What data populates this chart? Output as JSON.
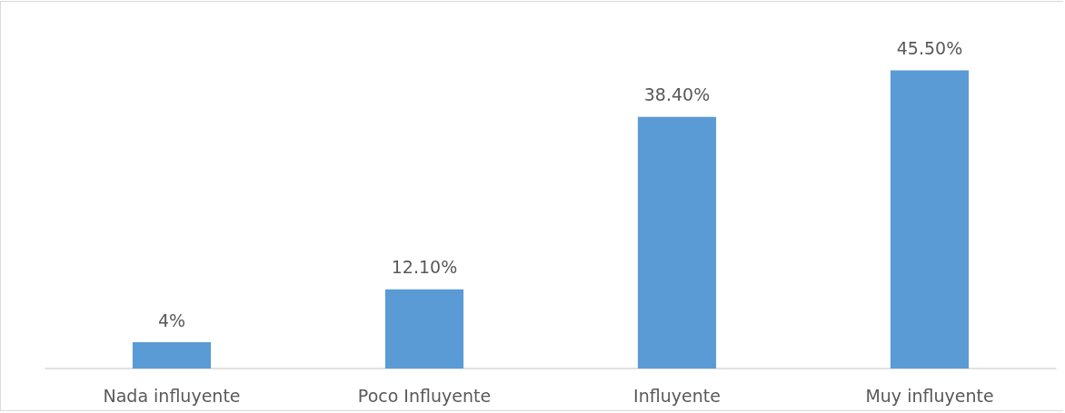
{
  "chart_data": {
    "type": "bar",
    "categories": [
      "Nada influyente",
      "Poco Influyente",
      "Influyente",
      "Muy influyente"
    ],
    "values": [
      4,
      12.1,
      38.4,
      45.5
    ],
    "value_labels": [
      "4%",
      "12.10%",
      "38.40%",
      "45.50%"
    ],
    "color": "#5b9bd5"
  }
}
